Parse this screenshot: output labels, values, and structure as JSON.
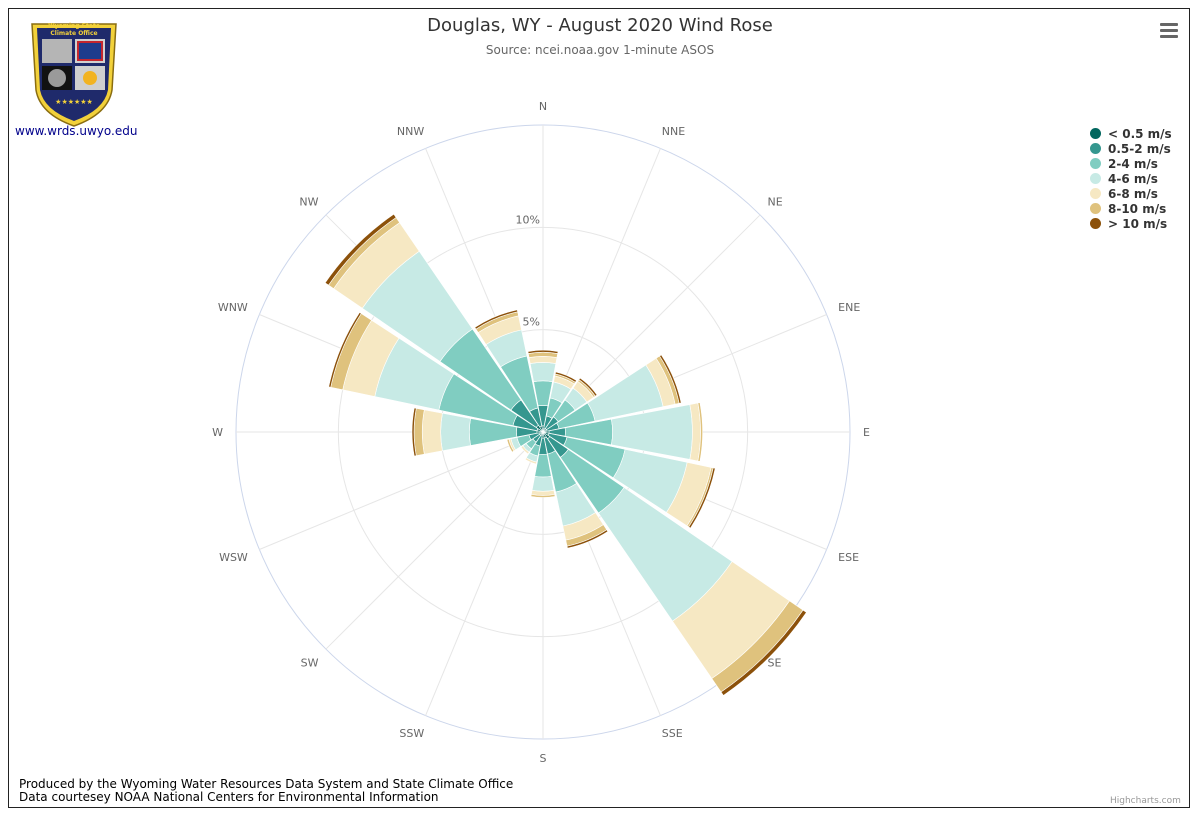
{
  "header": {
    "title": "Douglas, WY - August 2020 Wind Rose",
    "subtitle": "Source: ncei.noaa.gov 1-minute ASOS"
  },
  "logo": {
    "line1": "Wyoming State",
    "line2": "Climate Office",
    "link_text": "www.wrds.uwyo.edu"
  },
  "footer": {
    "line1": "Produced by the Wyoming Water Resources Data System and State Climate Office",
    "line2": "Data courtesey NOAA National Centers for Environmental Information"
  },
  "credits": "Highcharts.com",
  "icons": {
    "menu": "hamburger-menu-icon"
  },
  "chart_data": {
    "type": "windrose",
    "title": "Douglas, WY - August 2020 Wind Rose",
    "subtitle": "Source: ncei.noaa.gov 1-minute ASOS",
    "categories": [
      "N",
      "NNE",
      "NE",
      "ENE",
      "E",
      "ESE",
      "SE",
      "SSE",
      "S",
      "SSW",
      "SW",
      "WSW",
      "W",
      "WNW",
      "NW",
      "NNW"
    ],
    "radial_max": 15,
    "radial_ticks": [
      5,
      10
    ],
    "radial_tick_labels": [
      "5%",
      "10%"
    ],
    "stacking": true,
    "series": [
      {
        "name": "< 0.5 m/s",
        "color": "#01665e",
        "values": [
          0.3,
          0.2,
          0.2,
          0.2,
          0.3,
          0.3,
          0.4,
          0.3,
          0.3,
          0.2,
          0.2,
          0.2,
          0.3,
          0.3,
          0.4,
          0.3
        ]
      },
      {
        "name": "0.5-2 m/s",
        "color": "#35978f",
        "values": [
          1.0,
          0.6,
          0.7,
          0.6,
          0.8,
          0.9,
          1.1,
          0.8,
          0.8,
          0.5,
          0.4,
          0.5,
          1.0,
          1.2,
          1.5,
          0.9
        ]
      },
      {
        "name": "2-4 m/s",
        "color": "#80cdc1",
        "values": [
          1.2,
          0.9,
          1.0,
          1.8,
          2.3,
          2.9,
          3.3,
          1.9,
          1.1,
          0.5,
          0.4,
          0.6,
          2.3,
          3.7,
          4.2,
          2.6
        ]
      },
      {
        "name": "4-6 m/s",
        "color": "#c7eae5",
        "values": [
          0.9,
          0.8,
          0.7,
          3.4,
          3.9,
          3.1,
          6.4,
          1.7,
          0.7,
          0.3,
          0.2,
          0.3,
          1.4,
          3.2,
          4.6,
          1.3
        ]
      },
      {
        "name": "6-8 m/s",
        "color": "#f6e8c3",
        "values": [
          0.3,
          0.3,
          0.4,
          0.6,
          0.4,
          1.2,
          3.4,
          0.7,
          0.2,
          0.1,
          0.1,
          0.1,
          0.9,
          1.6,
          1.7,
          0.7
        ]
      },
      {
        "name": "8-10 m/s",
        "color": "#dfc27d",
        "values": [
          0.2,
          0.1,
          0.1,
          0.2,
          0.1,
          0.1,
          0.8,
          0.3,
          0.1,
          0.0,
          0.0,
          0.1,
          0.4,
          0.6,
          0.3,
          0.2
        ]
      },
      {
        "name": "> 10 m/s",
        "color": "#8c510a",
        "values": [
          0.1,
          0.1,
          0.1,
          0.1,
          0.0,
          0.1,
          0.2,
          0.1,
          0.0,
          0.0,
          0.0,
          0.0,
          0.1,
          0.1,
          0.2,
          0.1
        ]
      }
    ]
  }
}
